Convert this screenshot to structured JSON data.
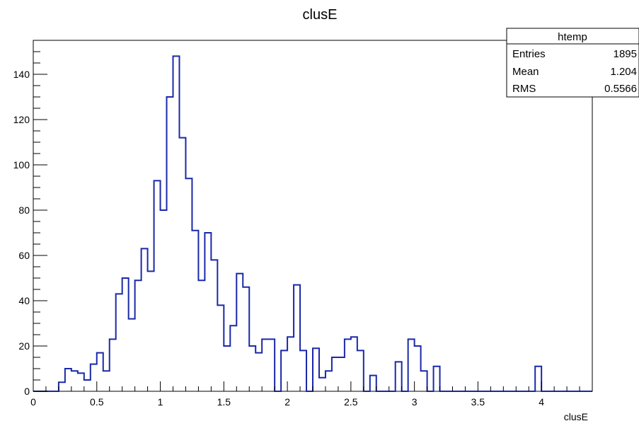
{
  "chart_data": {
    "type": "histogram",
    "title": "clusE",
    "xlabel": "clusE",
    "ylabel": "",
    "xlim": [
      0,
      4.4
    ],
    "ylim": [
      0,
      155
    ],
    "grid": false,
    "bin_width": 0.05,
    "x_ticks": [
      0,
      0.5,
      1,
      1.5,
      2,
      2.5,
      3,
      3.5,
      4
    ],
    "x_tick_labels": [
      "0",
      "0.5",
      "1",
      "1.5",
      "2",
      "2.5",
      "3",
      "3.5",
      "4"
    ],
    "y_ticks": [
      0,
      20,
      40,
      60,
      80,
      100,
      120,
      140
    ],
    "y_tick_labels": [
      "0",
      "20",
      "40",
      "60",
      "80",
      "100",
      "120",
      "140"
    ],
    "bins_x_low": [
      0.0,
      0.05,
      0.1,
      0.15,
      0.2,
      0.25,
      0.3,
      0.35,
      0.4,
      0.45,
      0.5,
      0.55,
      0.6,
      0.65,
      0.7,
      0.75,
      0.8,
      0.85,
      0.9,
      0.95,
      1.0,
      1.05,
      1.1,
      1.15,
      1.2,
      1.25,
      1.3,
      1.35,
      1.4,
      1.45,
      1.5,
      1.55,
      1.6,
      1.65,
      1.7,
      1.75,
      1.8,
      1.85,
      1.9,
      1.95,
      2.0,
      2.05,
      2.1,
      2.15,
      2.2,
      2.25,
      2.3,
      2.35,
      2.4,
      2.45,
      2.5,
      2.55,
      2.6,
      2.65,
      2.7,
      2.75,
      2.8,
      2.85,
      2.9,
      2.95,
      3.0,
      3.05,
      3.1,
      3.15,
      3.2,
      3.25,
      3.3,
      3.35,
      3.4,
      3.45,
      3.5,
      3.55,
      3.6,
      3.65,
      3.7,
      3.75,
      3.8,
      3.85,
      3.9,
      3.95,
      4.0,
      4.05,
      4.1,
      4.15,
      4.2,
      4.25,
      4.3,
      4.35
    ],
    "values": [
      0,
      0,
      0,
      0,
      4,
      10,
      9,
      8,
      5,
      12,
      17,
      9,
      23,
      43,
      50,
      32,
      49,
      63,
      53,
      93,
      80,
      130,
      148,
      112,
      94,
      71,
      49,
      70,
      58,
      38,
      20,
      29,
      52,
      46,
      20,
      17,
      23,
      23,
      0,
      18,
      24,
      47,
      18,
      0,
      19,
      6,
      9,
      15,
      15,
      23,
      24,
      18,
      0,
      7,
      0,
      0,
      0,
      13,
      0,
      23,
      20,
      9,
      0,
      11,
      0,
      0,
      0,
      0,
      0,
      0,
      0,
      0,
      0,
      0,
      0,
      0,
      0,
      0,
      0,
      11,
      0,
      0,
      0,
      0,
      0,
      0,
      0,
      0
    ],
    "legend": {
      "placement": "top-right",
      "name": "htemp",
      "entries_label": "Entries",
      "entries_value": "1895",
      "mean_label": "Mean",
      "mean_value": "1.204",
      "rms_label": "RMS",
      "rms_value": "0.5566"
    },
    "line_color": "#1a28a8"
  }
}
